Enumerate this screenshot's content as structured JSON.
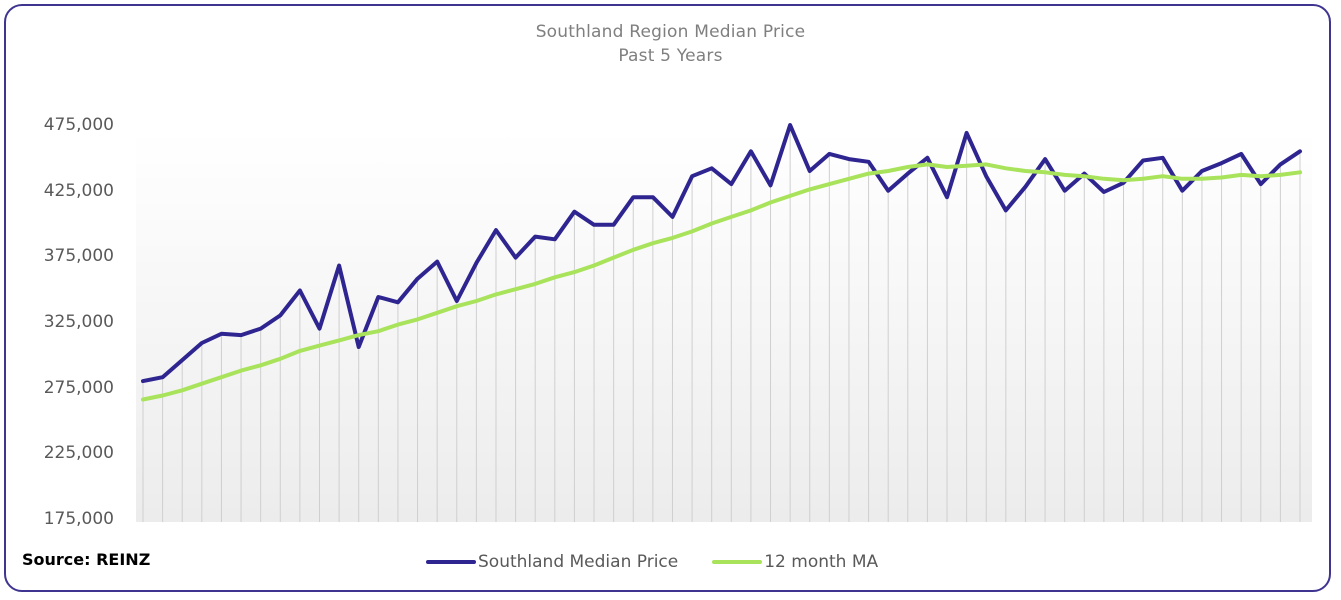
{
  "chart_data": {
    "type": "line",
    "title": "Southland Region Median Price",
    "subtitle": "Past 5 Years",
    "ylim": [
      175000,
      475000
    ],
    "yticks": [
      "475,000",
      "425,000",
      "375,000",
      "325,000",
      "275,000",
      "225,000",
      "175,000"
    ],
    "ytick_values": [
      475000,
      425000,
      375000,
      325000,
      275000,
      225000,
      175000
    ],
    "grid": false,
    "legend_position": "bottom",
    "series": [
      {
        "name": "Southland Median Price",
        "color": "#2e2590",
        "values": [
          280000,
          283000,
          296000,
          309000,
          316000,
          315000,
          320000,
          330000,
          349000,
          320000,
          368000,
          306000,
          344000,
          340000,
          358000,
          371000,
          341000,
          370000,
          395000,
          374000,
          390000,
          388000,
          409000,
          399000,
          399000,
          420000,
          420000,
          405000,
          436000,
          442000,
          430000,
          455000,
          429000,
          475000,
          440000,
          453000,
          449000,
          447000,
          425000,
          438000,
          450000,
          420000,
          469000,
          436000,
          410000,
          428000,
          449000,
          425000,
          438000,
          424000,
          431000,
          448000,
          450000,
          425000,
          440000,
          446000,
          453000,
          430000,
          445000,
          455000
        ]
      },
      {
        "name": "12 month MA",
        "color": "#a8e35b",
        "values": [
          266000,
          269000,
          273000,
          278000,
          283000,
          288000,
          292000,
          297000,
          303000,
          307000,
          311000,
          315000,
          318000,
          323000,
          327000,
          332000,
          337000,
          341000,
          346000,
          350000,
          354000,
          359000,
          363000,
          368000,
          374000,
          380000,
          385000,
          389000,
          394000,
          400000,
          405000,
          410000,
          416000,
          421000,
          426000,
          430000,
          434000,
          438000,
          440000,
          443000,
          445000,
          443000,
          444000,
          445000,
          442000,
          440000,
          439000,
          437000,
          436000,
          434000,
          433000,
          434000,
          436000,
          434000,
          434000,
          435000,
          437000,
          436000,
          437000,
          439000
        ]
      }
    ]
  },
  "legend": {
    "series1": "Southland Median Price",
    "series2": "12 month MA"
  },
  "source": "Source: REINZ",
  "colors": {
    "frame": "#3f3591",
    "series1": "#2e2590",
    "series2": "#a8e35b",
    "gridline": "#cfcfcf"
  }
}
